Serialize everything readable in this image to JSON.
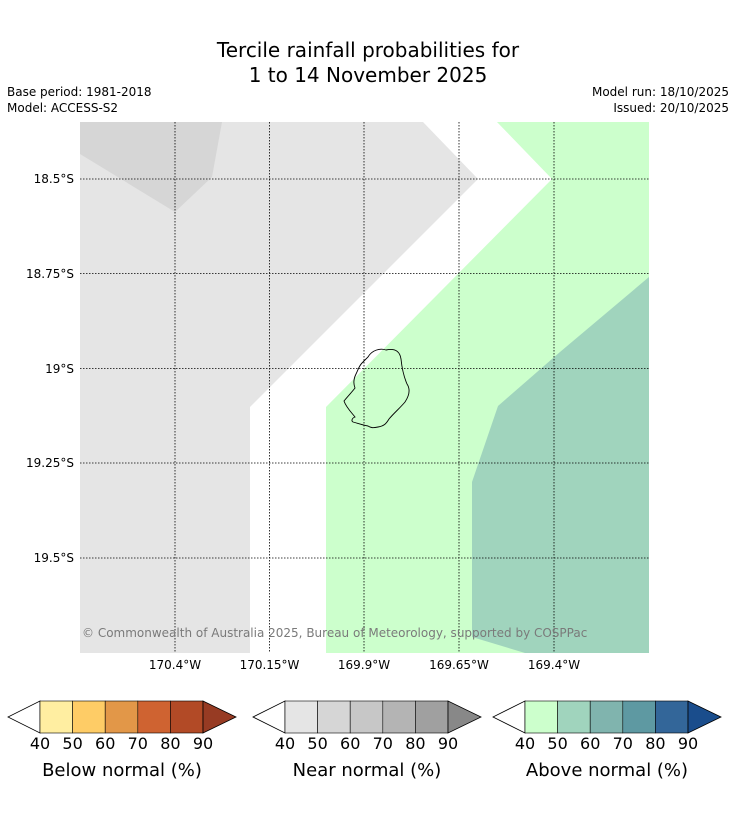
{
  "title_line1": "Tercile rainfall probabilities for",
  "title_line2": "1 to 14 November 2025",
  "base_period": "Base period: 1981-2018",
  "model": "Model: ACCESS-S2",
  "model_run": "Model run: 18/10/2025",
  "issued": "Issued: 20/10/2025",
  "copyright": "© Commonwealth of Australia 2025, Bureau of Meteorology, supported by COSPPac",
  "map": {
    "lat_labels": [
      "18.5°S",
      "18.75°S",
      "19°S",
      "19.25°S",
      "19.5°S"
    ],
    "lon_labels": [
      "170.4°W",
      "170.15°W",
      "169.9°W",
      "169.65°W",
      "169.4°W"
    ],
    "colors": {
      "near_light": "#e5e5e5",
      "near_mid": "#d6d6d6",
      "above_light": "#ccffcc",
      "above_mid": "#a0d4bd",
      "coast": "#000000"
    }
  },
  "legends": [
    {
      "name": "Below normal (%)",
      "ticks": [
        "40",
        "50",
        "60",
        "70",
        "80",
        "90"
      ],
      "colors": [
        "#ffffff",
        "#ffeea1",
        "#fecc66",
        "#e29748",
        "#cf6331",
        "#b24a26",
        "#973b23"
      ]
    },
    {
      "name": "Near normal (%)",
      "ticks": [
        "40",
        "50",
        "60",
        "70",
        "80",
        "90"
      ],
      "colors": [
        "#ffffff",
        "#e5e5e5",
        "#d6d6d6",
        "#c7c7c7",
        "#b4b4b4",
        "#a0a0a0",
        "#888888"
      ]
    },
    {
      "name": "Above normal (%)",
      "ticks": [
        "40",
        "50",
        "60",
        "70",
        "80",
        "90"
      ],
      "colors": [
        "#ffffff",
        "#ccffcc",
        "#a0d4bd",
        "#80b4ae",
        "#5e99a2",
        "#336699",
        "#1a4d8c"
      ]
    }
  ]
}
